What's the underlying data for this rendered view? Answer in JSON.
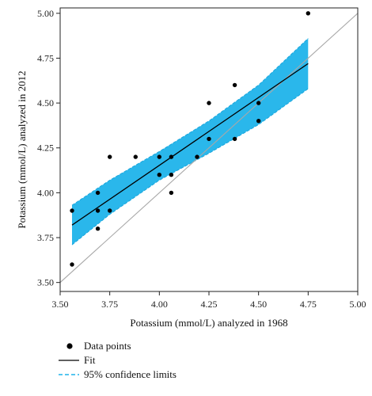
{
  "chart_data": {
    "type": "scatter",
    "xlabel": "Potassium (mmol/L) analyzed in 1968",
    "ylabel": "Potassium (mmol/L) analyzed in 2012",
    "xlim": [
      3.5,
      5.0
    ],
    "ylim": [
      3.45,
      5.03
    ],
    "x_ticks": [
      "3.50",
      "3.75",
      "4.00",
      "4.25",
      "4.50",
      "4.75",
      "5.00"
    ],
    "y_ticks": [
      "3.50",
      "3.75",
      "4.00",
      "4.25",
      "4.50",
      "4.75",
      "5.00"
    ],
    "grid": false,
    "legend_position": "bottom-left",
    "identity_line": {
      "from": [
        3.5,
        3.5
      ],
      "to": [
        5.0,
        5.0
      ],
      "color": "#a8a8a8"
    },
    "fit": {
      "name": "Fit",
      "from": [
        3.56,
        3.82
      ],
      "to": [
        4.75,
        4.72
      ],
      "color": "#000000"
    },
    "confidence_band": {
      "name": "95% confidence limits",
      "color": "#1fb3ea",
      "x": [
        3.56,
        3.75,
        4.0,
        4.25,
        4.5,
        4.75
      ],
      "lower": [
        3.71,
        3.88,
        4.07,
        4.22,
        4.38,
        4.58
      ],
      "upper": [
        3.93,
        4.07,
        4.23,
        4.4,
        4.6,
        4.86
      ]
    },
    "series": [
      {
        "name": "Data points",
        "color": "#000000",
        "points": [
          [
            3.56,
            3.9
          ],
          [
            3.56,
            3.6
          ],
          [
            3.69,
            4.0
          ],
          [
            3.69,
            3.9
          ],
          [
            3.69,
            3.8
          ],
          [
            3.75,
            4.2
          ],
          [
            3.75,
            3.9
          ],
          [
            3.88,
            4.2
          ],
          [
            4.0,
            4.2
          ],
          [
            4.0,
            4.1
          ],
          [
            4.06,
            4.2
          ],
          [
            4.06,
            4.1
          ],
          [
            4.06,
            4.0
          ],
          [
            4.19,
            4.2
          ],
          [
            4.25,
            4.5
          ],
          [
            4.25,
            4.3
          ],
          [
            4.38,
            4.6
          ],
          [
            4.38,
            4.3
          ],
          [
            4.5,
            4.5
          ],
          [
            4.5,
            4.4
          ],
          [
            4.75,
            5.0
          ]
        ]
      }
    ]
  }
}
